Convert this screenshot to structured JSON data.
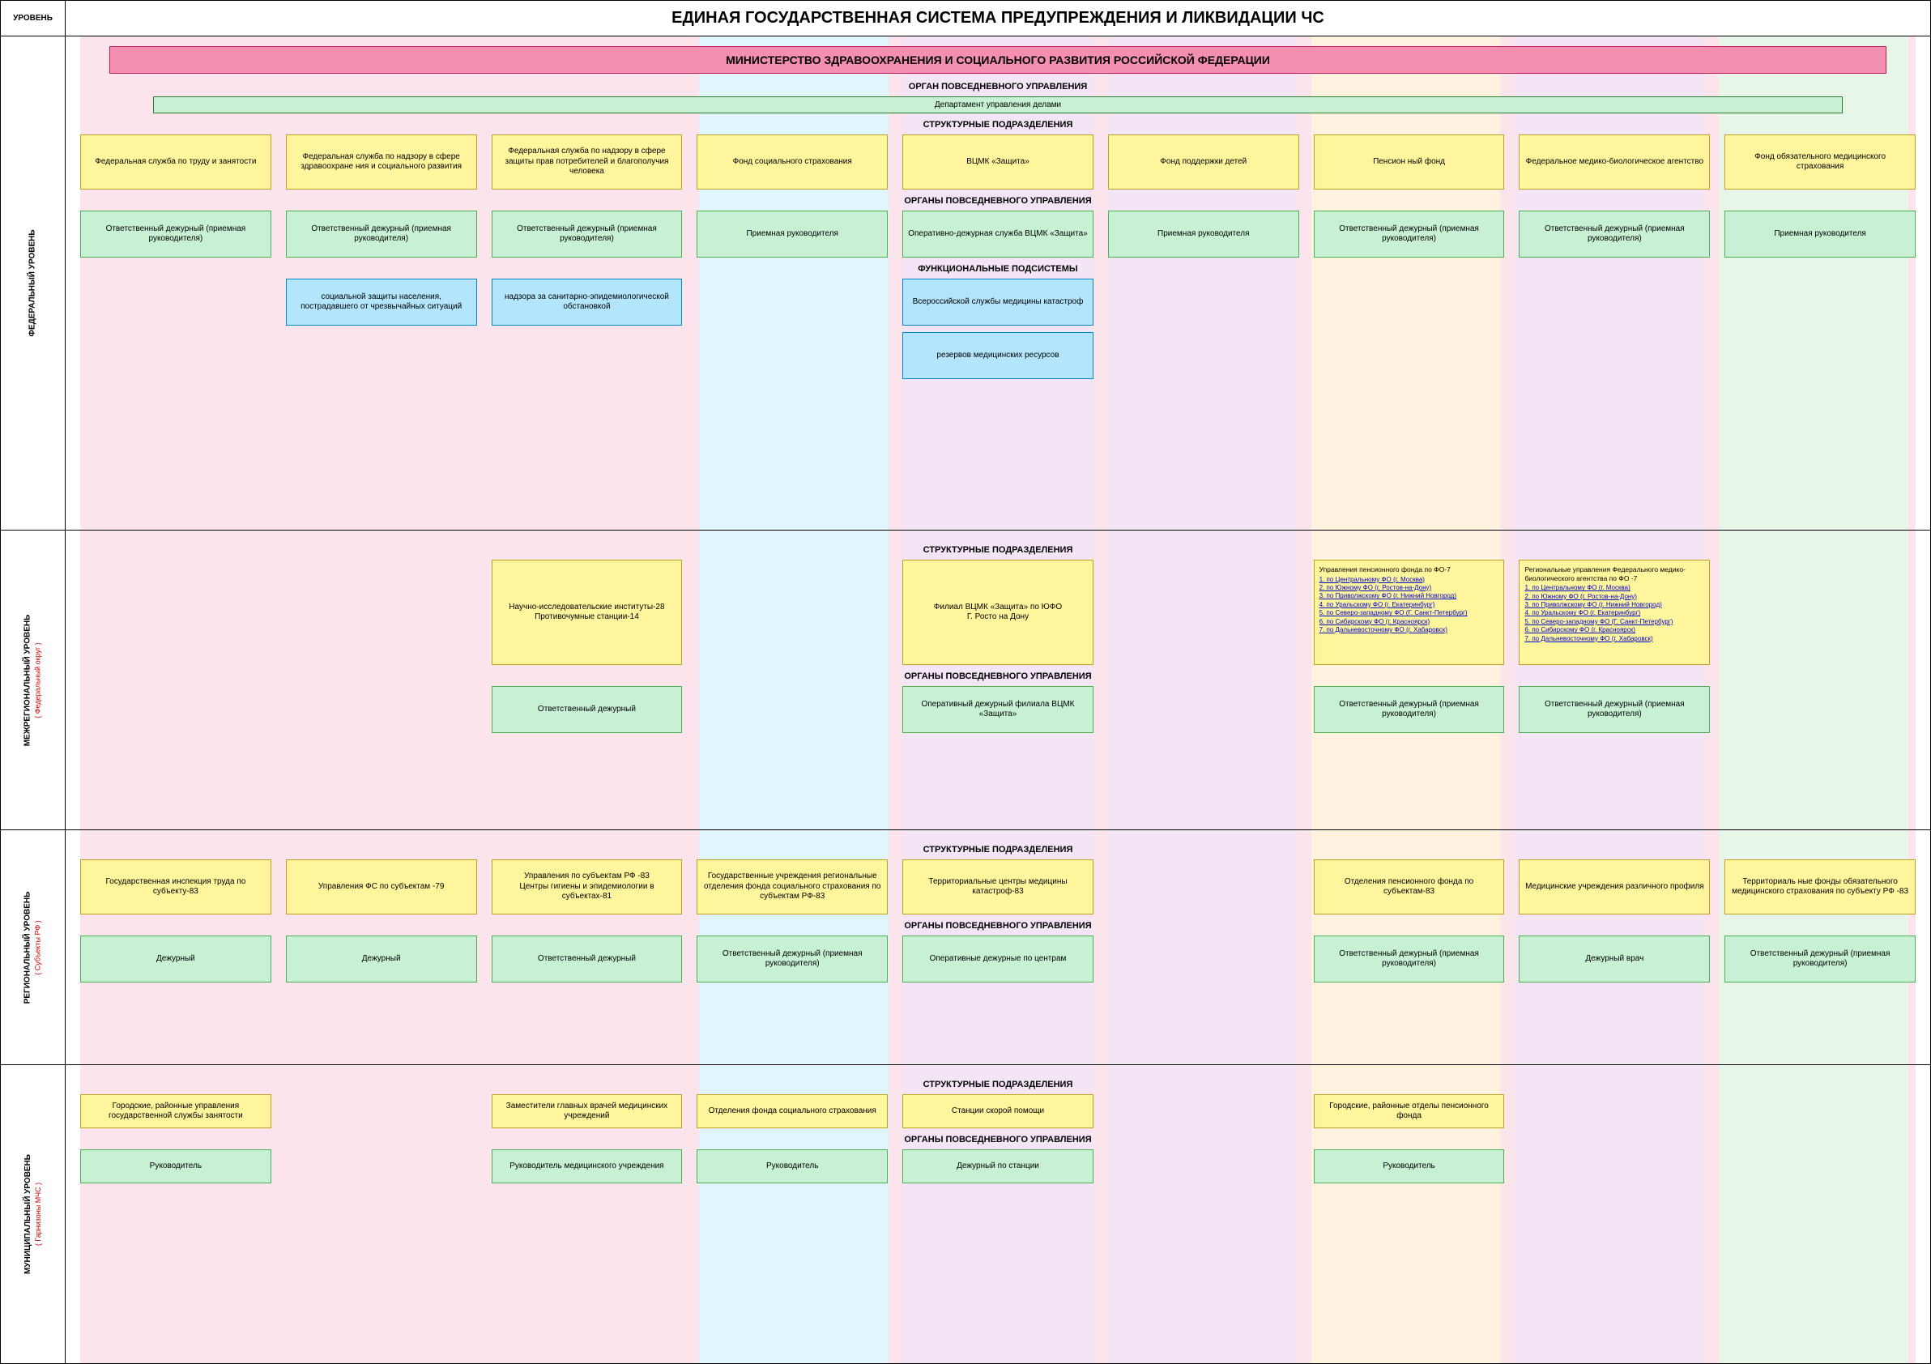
{
  "header": {
    "level_label": "УРОВЕНЬ",
    "title": "ЕДИНАЯ ГОСУДАРСТВЕННАЯ СИСТЕМА ПРЕДУПРЕЖДЕНИЯ И ЛИКВИДАЦИИ ЧС"
  },
  "colors": {
    "yellow": "#fff59d",
    "green": "#c8f0d4",
    "cyan": "#b3e5fc",
    "pink_bar": "#f48fb1",
    "pink_strip": "#fce4ec",
    "col_cyan": "#e1f5fe",
    "col_lav": "#f3e5f5",
    "col_peach": "#fff3e0",
    "col_mint": "#e8f5e9"
  },
  "section_titles": {
    "organ_povsed": "ОРГАН ПОВСЕДНЕВНОГО УПРАВЛЕНИЯ",
    "strukt_podr": "СТРУКТУРНЫЕ ПОДРАЗДЕЛЕНИЯ",
    "organy_povsed": "ОРГАНЫ ПОВСЕДНЕВНОГО УПРАВЛЕНИЯ",
    "funk_pods": "ФУНКЦИОНАЛЬНЫЕ ПОДСИСТЕМЫ"
  },
  "federal": {
    "label": "ФЕДЕРАЛЬНЫЙ УРОВЕНЬ",
    "ministry": "МИНИСТЕРСТВО ЗДРАВООХРАНЕНИЯ И СОЦИАЛЬНОГО РАЗВИТИЯ РОССИЙСКОЙ ФЕДЕРАЦИИ",
    "dept": "Департамент управления делами",
    "struct": [
      "Федеральная служба по труду и занятости",
      "Федеральная служба по надзору в сфере здравоохране ния и социального развития",
      "Федеральная служба по надзору в сфере защиты прав потребителей и благополучия человека",
      "Фонд социального страхования",
      "ВЦМК «Защита»",
      "Фонд поддержки детей",
      "Пенсион ный фонд",
      "Федеральное медико-биологическое агентство",
      "Фонд обязательного медицинского страхования"
    ],
    "organs": [
      "Ответственный дежурный (приемная руководителя)",
      "Ответственный дежурный (приемная руководителя)",
      "Ответственный дежурный (приемная руководителя)",
      "Приемная руководителя",
      "Оперативно-дежурная служба ВЦМК «Защита»",
      "Приемная руководителя",
      "Ответственный дежурный (приемная руководителя)",
      "Ответственный дежурный (приемная руководителя)",
      "Приемная руководителя"
    ],
    "funk": {
      "1": "социальной защиты населения, пострадавшего от чрезвычайных ситуаций",
      "2": "надзора за санитарно-эпидемиологической обстановкой",
      "4a": "Всероссийской службы медицины катастроф",
      "4b": "резервов медицинских ресурсов"
    }
  },
  "interregional": {
    "label": "МЕЖРЕГИОНАЛЬНЫЙ УРОВЕНЬ",
    "sublabel": "( Федеральный округ )",
    "struct": {
      "2": "Научно-исследовательские институты-28\nПротивочумные станции-14",
      "4": "Филиал ВЦМК «Защита» по ЮФО\nГ. Росто на Дону",
      "6": {
        "hdr": "Управления пенсионного фонда по ФО-7",
        "links": [
          "1.  по Центральному ФО (г. Москва)",
          "2.  по Южному ФО (г. Ростов-на-Дону)",
          "3.  по Приволжскому ФО (г. Нижний Новгород)",
          "4.  по Уральскому ФО (г. Екатеринбург)",
          "5.  по Северо-западному ФО (Г. Санкт-Петербург)",
          "6.  по Сибирскому ФО (г. Красноярск)",
          "7.  по Дальневосточному ФО (г. Хабаровск)"
        ]
      },
      "7": {
        "hdr": "Региональные управления Федерального медико-биологического агентства по ФО -7",
        "links": [
          "1.  по Центральному ФО (г. Москва)",
          "2.  по Южному ФО (г. Ростов-на-Дону)",
          "3.  по Приволжскому ФО (г. Нижний Новгород)",
          "4.  по Уральскому ФО (г. Екатеринбург)",
          "5.  по Северо-западному ФО (Г. Санкт-Петербург)",
          "6.  по Сибирскому ФО (г. Красноярск)",
          "7.  по Дальневосточному ФО (г. Хабаровск)"
        ]
      }
    },
    "organs": {
      "2": "Ответственный дежурный",
      "4": "Оперативный дежурный филиала ВЦМК «Защита»",
      "6": "Ответственный дежурный (приемная руководителя)",
      "7": "Ответственный дежурный (приемная руководителя)"
    }
  },
  "regional": {
    "label": "РЕГИОНАЛЬНЫЙ УРОВЕНЬ",
    "sublabel": "( Субъекты РФ )",
    "struct": [
      "Государственная инспекция труда по субъекту-83",
      "Управления ФС по субъектам   -79",
      "Управления по субъектам РФ -83\nЦентры гигиены и эпидемиологии в субъектах-81",
      "Государственные учреждения региональные отделения фонда социального страхования по субъектам РФ-83",
      "Территориальные центры медицины катастроф-83",
      "",
      "Отделения пенсионного фонда по субъектам-83",
      "Медицинские учреждения различного профиля",
      "Территориаль ные фонды обязательного медицинского страхования по субъекту РФ -83"
    ],
    "organs": [
      "Дежурный",
      "Дежурный",
      "Ответственный дежурный",
      "Ответственный дежурный (приемная руководителя)",
      "Оперативные дежурные по центрам",
      "",
      "Ответственный дежурный (приемная руководителя)",
      "Дежурный врач",
      "Ответственный дежурный (приемная руководителя)"
    ]
  },
  "municipal": {
    "label": "МУНИЦИПАЛЬНЫЙ УРОВЕНЬ",
    "sublabel": "( Гарнизоны МЧС )",
    "struct": [
      "Городские, районные управления государственной службы занятости",
      "",
      "Заместители главных врачей медицинских учреждений",
      "Отделения фонда социального страхования",
      "Станции скорой помощи",
      "",
      "Городские, районные отделы пенсионного фонда",
      "",
      ""
    ],
    "organs": [
      "Руководитель",
      "",
      "Руководитель медицинского учреждения",
      "Руководитель",
      "Дежурный по станции",
      "",
      "Руководитель",
      "",
      ""
    ]
  }
}
